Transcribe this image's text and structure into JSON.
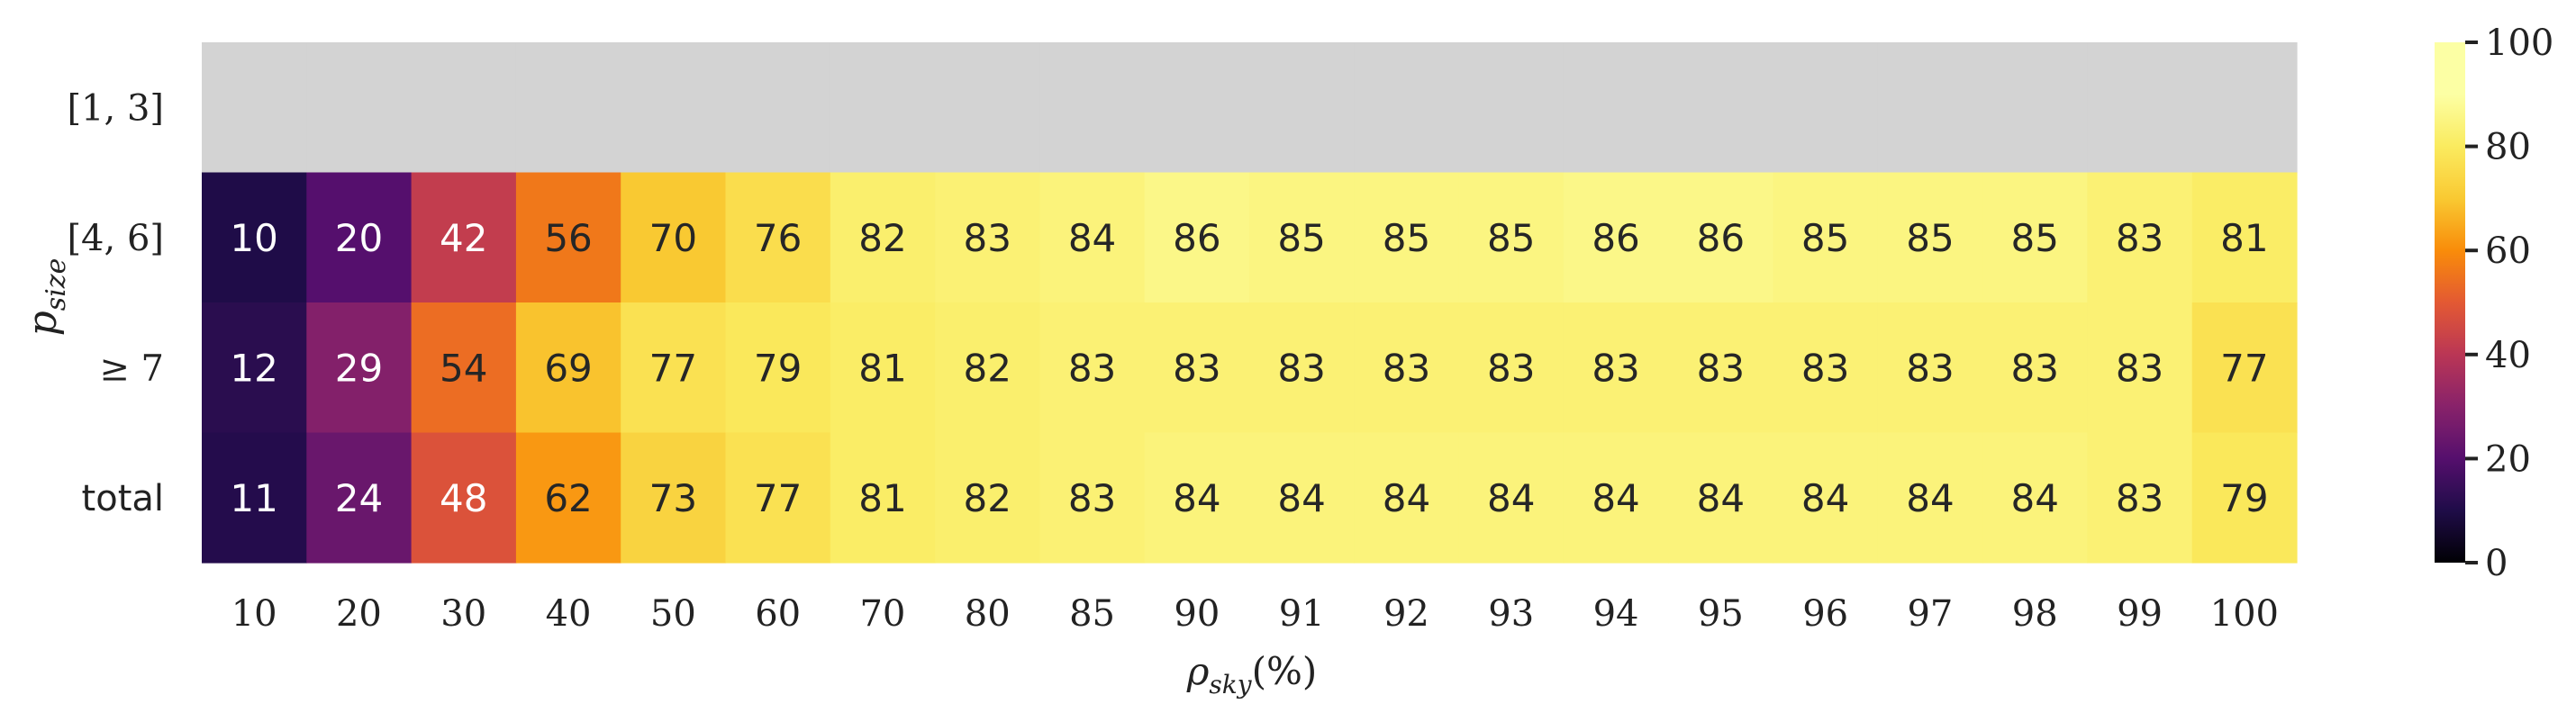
{
  "chart_data": {
    "type": "heatmap",
    "title": "",
    "xlabel": "ρ",
    "xlabel_sub": "sky",
    "xlabel_suffix": "(%)",
    "ylabel": "p",
    "ylabel_sub": "size",
    "x_categories": [
      "10",
      "20",
      "30",
      "40",
      "50",
      "60",
      "70",
      "80",
      "85",
      "90",
      "91",
      "92",
      "93",
      "94",
      "95",
      "96",
      "97",
      "98",
      "99",
      "100"
    ],
    "y_categories": [
      "[1, 3]",
      "[4, 6]",
      "≥ 7",
      "total"
    ],
    "values": [
      [
        null,
        null,
        null,
        null,
        null,
        null,
        null,
        null,
        null,
        null,
        null,
        null,
        null,
        null,
        null,
        null,
        null,
        null,
        null,
        null
      ],
      [
        10,
        20,
        42,
        56,
        70,
        76,
        82,
        83,
        84,
        86,
        85,
        85,
        85,
        86,
        86,
        85,
        85,
        85,
        83,
        81
      ],
      [
        12,
        29,
        54,
        69,
        77,
        79,
        81,
        82,
        83,
        83,
        83,
        83,
        83,
        83,
        83,
        83,
        83,
        83,
        83,
        77
      ],
      [
        11,
        24,
        48,
        62,
        73,
        77,
        81,
        82,
        83,
        84,
        84,
        84,
        84,
        84,
        84,
        84,
        84,
        84,
        83,
        79
      ]
    ],
    "colormap": "inferno",
    "vmin": 0,
    "vmax": 100,
    "missing_color": "#d3d3d3",
    "colorbar_ticks": [
      "0",
      "20",
      "40",
      "60",
      "80",
      "100"
    ],
    "annotations": true
  }
}
